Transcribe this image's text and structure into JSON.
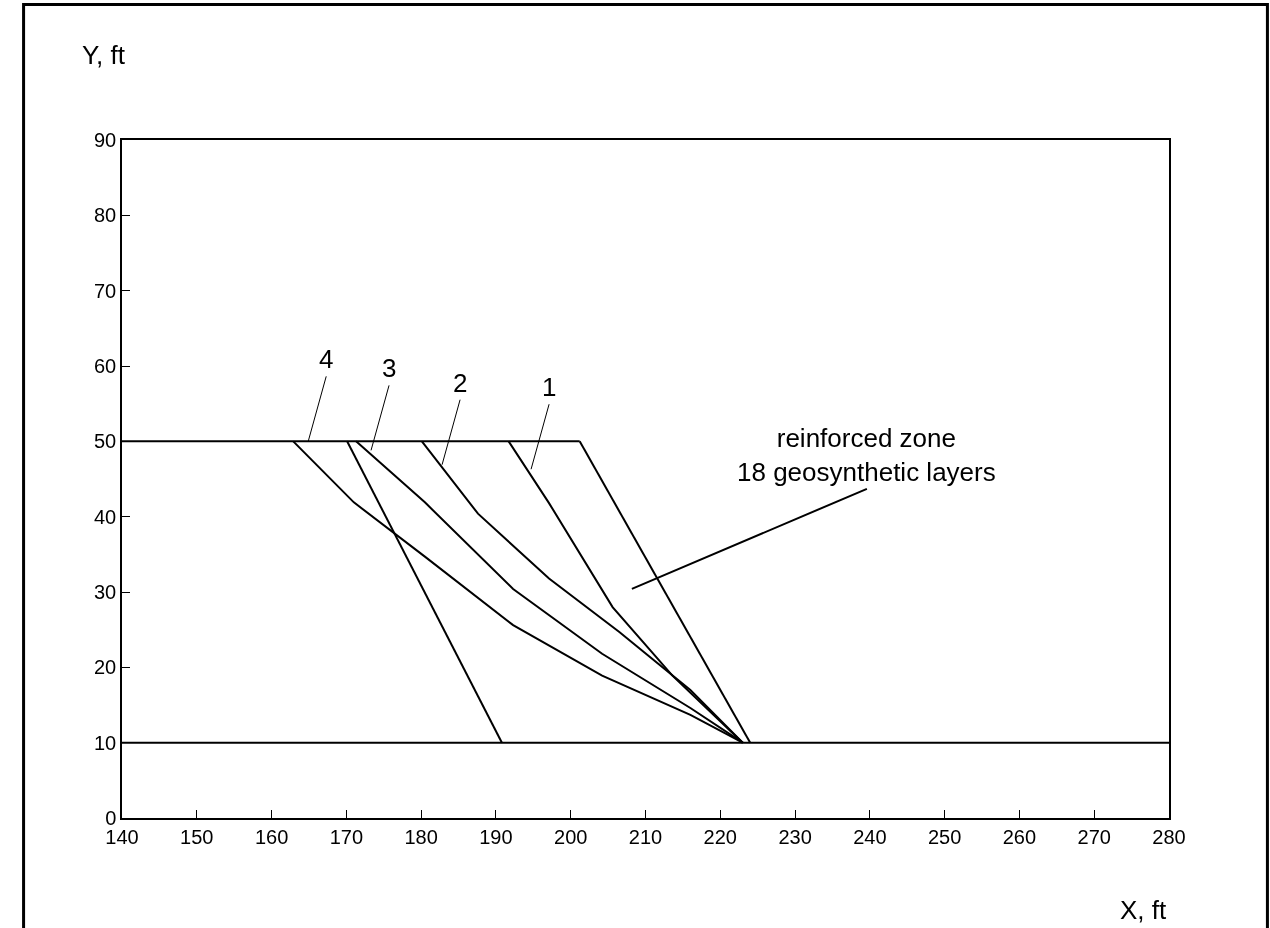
{
  "chart_data": {
    "type": "line",
    "xlabel": "X, ft",
    "ylabel": "Y, ft",
    "xlim": [
      140,
      280
    ],
    "ylim": [
      0,
      90
    ],
    "xticks": [
      140,
      150,
      160,
      170,
      180,
      190,
      200,
      210,
      220,
      230,
      240,
      250,
      260,
      270,
      280
    ],
    "yticks": [
      0,
      10,
      20,
      30,
      40,
      50,
      60,
      70,
      80,
      90
    ],
    "marker": "none",
    "line_style": "solid",
    "series": [
      {
        "color": "#000000",
        "x": [
          140,
          201.2
        ],
        "values": [
          50,
          50
        ]
      },
      {
        "color": "#000000",
        "x": [
          140,
          280
        ],
        "values": [
          10,
          10
        ]
      },
      {
        "color": "#000000",
        "x": [
          201.2,
          224
        ],
        "values": [
          50,
          10
        ]
      },
      {
        "color": "#000000",
        "x": [
          170.1,
          190.8
        ],
        "values": [
          50,
          10
        ]
      },
      {
        "color": "#000000",
        "x": [
          191.7,
          197.1,
          205.6,
          213.6,
          223
        ],
        "values": [
          50,
          41.8,
          28.0,
          18.9,
          10
        ]
      },
      {
        "color": "#000000",
        "x": [
          180.1,
          187.6,
          197.1,
          206.5,
          216.0,
          223
        ],
        "values": [
          50,
          40.4,
          31.8,
          24.7,
          17.0,
          10
        ]
      },
      {
        "color": "#000000",
        "x": [
          171.3,
          180.5,
          192.3,
          204.2,
          216.0,
          223
        ],
        "values": [
          50,
          41.9,
          30.4,
          21.8,
          14.6,
          10
        ]
      },
      {
        "color": "#000000",
        "x": [
          162.9,
          171.0,
          180.5,
          192.3,
          204.2,
          216.0,
          223
        ],
        "values": [
          50,
          41.9,
          34.7,
          25.6,
          18.9,
          13.7,
          10
        ]
      }
    ],
    "annotations": [
      {
        "text": "1",
        "x": 194.7,
        "y": 46.3
      },
      {
        "text": "2",
        "x": 182.8,
        "y": 46.9
      },
      {
        "text": "3",
        "x": 173.3,
        "y": 48.8
      },
      {
        "text": "4",
        "x": 164.9,
        "y": 50
      },
      "reinforced zone\n18 geosynthetic layers"
    ]
  }
}
